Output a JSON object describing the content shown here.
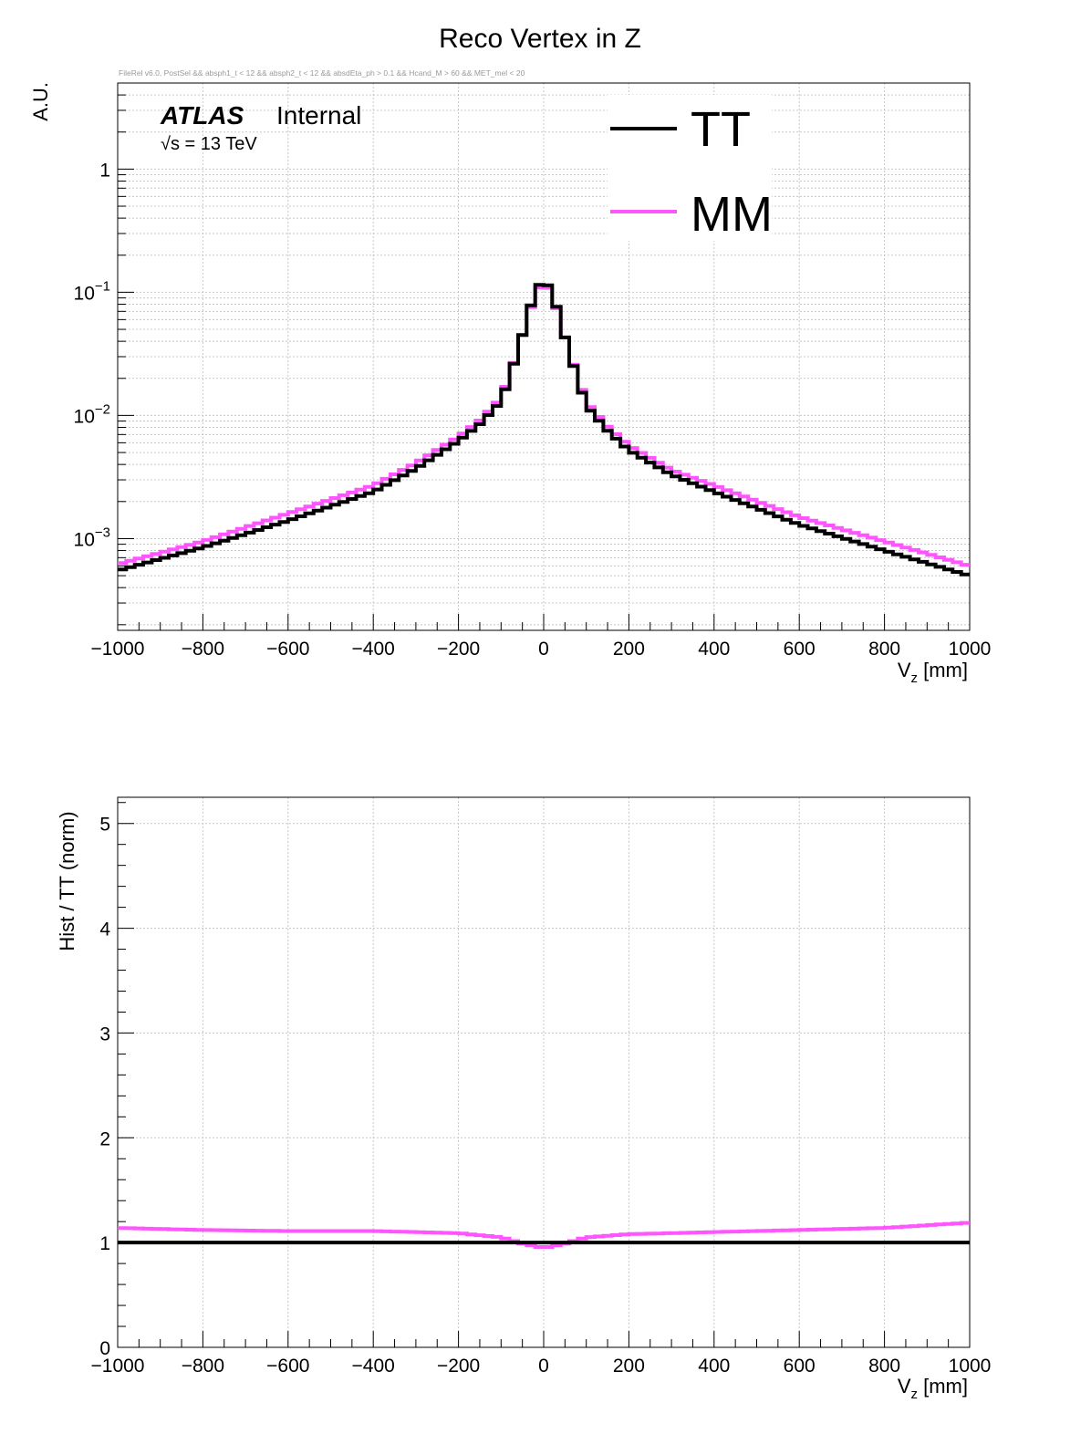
{
  "title": "Reco Vertex in Z",
  "selection_note": "FileRel v6.0, PostSel &&  absph1_t < 12 && absph2_t < 12 && absdEta_ph > 0.1 && Hcand_M > 60 && MET_mel < 20",
  "atlas_label": "ATLAS",
  "atlas_status": "Internal",
  "energy_label": "√s = 13 TeV",
  "colors": {
    "TT": "#000000",
    "MM": "#ff55ff",
    "grid": "#c8c8c8"
  },
  "chart_data": [
    {
      "type": "line",
      "name": "main",
      "ylabel": "A.U.",
      "xlabel_main": "V",
      "xlabel_sub": "z",
      "xlabel_unit": " [mm]",
      "xlim": [
        -1000,
        1000
      ],
      "ylim": [
        0.00018,
        5
      ],
      "yscale": "log",
      "grid": true,
      "legend_position": "top-right",
      "x_ticks": [
        "−1000",
        "−800",
        "−600",
        "−400",
        "−200",
        "0",
        "200",
        "400",
        "600",
        "800",
        "1000"
      ],
      "y_ticks": [
        {
          "value": 1,
          "base": "1",
          "exp": ""
        },
        {
          "value": 0.1,
          "base": "10",
          "exp": "−1"
        },
        {
          "value": 0.01,
          "base": "10",
          "exp": "−2"
        },
        {
          "value": 0.001,
          "base": "10",
          "exp": "−3"
        }
      ],
      "x": [
        -1000,
        -800,
        -600,
        -400,
        -300,
        -200,
        -150,
        -100,
        -75,
        -50,
        -25,
        0,
        25,
        50,
        75,
        100,
        150,
        200,
        300,
        400,
        600,
        800,
        1000
      ],
      "series": [
        {
          "name": "TT",
          "values": [
            0.00055,
            0.00085,
            0.0014,
            0.0024,
            0.0037,
            0.0062,
            0.0085,
            0.013,
            0.023,
            0.045,
            0.09,
            0.135,
            0.088,
            0.043,
            0.022,
            0.012,
            0.0075,
            0.0052,
            0.0033,
            0.0024,
            0.0013,
            0.0008,
            0.0005
          ]
        },
        {
          "name": "MM",
          "values": [
            0.00062,
            0.00095,
            0.0016,
            0.0027,
            0.0041,
            0.0067,
            0.0091,
            0.0138,
            0.0235,
            0.045,
            0.086,
            0.128,
            0.085,
            0.043,
            0.0228,
            0.0128,
            0.0081,
            0.0057,
            0.0036,
            0.0027,
            0.0015,
            0.00095,
            0.0006
          ]
        }
      ]
    },
    {
      "type": "line",
      "name": "ratio",
      "ylabel": "Hist / TT (norm)",
      "xlabel_main": "V",
      "xlabel_sub": "z",
      "xlabel_unit": " [mm]",
      "xlim": [
        -1000,
        1000
      ],
      "ylim": [
        0,
        5.25
      ],
      "grid": true,
      "x_ticks": [
        "−1000",
        "−800",
        "−600",
        "−400",
        "−200",
        "0",
        "200",
        "400",
        "600",
        "800",
        "1000"
      ],
      "y_ticks": [
        "0",
        "1",
        "2",
        "3",
        "4",
        "5"
      ],
      "x": [
        -1000,
        -800,
        -600,
        -400,
        -300,
        -200,
        -100,
        -50,
        0,
        50,
        100,
        200,
        400,
        600,
        800,
        1000
      ],
      "series": [
        {
          "name": "TT",
          "values": [
            1,
            1,
            1,
            1,
            1,
            1,
            1,
            1,
            1,
            1,
            1,
            1,
            1,
            1,
            1,
            1
          ]
        },
        {
          "name": "MM",
          "values": [
            1.14,
            1.12,
            1.11,
            1.11,
            1.1,
            1.09,
            1.05,
            0.99,
            0.95,
            0.99,
            1.05,
            1.08,
            1.1,
            1.12,
            1.14,
            1.19
          ]
        }
      ]
    }
  ]
}
